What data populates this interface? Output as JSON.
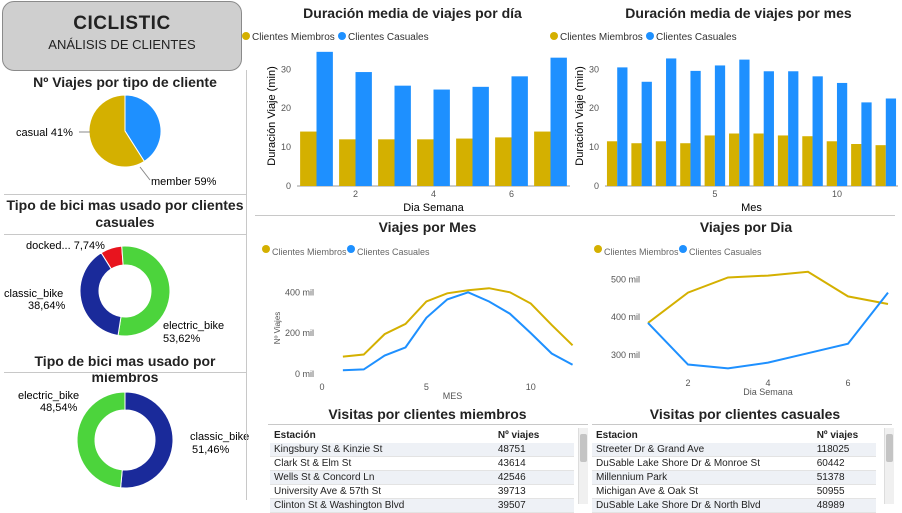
{
  "brand": {
    "title": "CICLISTIC",
    "subtitle": "ANÁLISIS DE CLIENTES"
  },
  "colors": {
    "members": "#d4b000",
    "casual": "#1e90ff",
    "electric": "#4cd43c",
    "classic": "#1a2a9a",
    "docked": "#e8141e"
  },
  "legend": {
    "members": "Clientes Miembros",
    "casual": "Clientes Casuales"
  },
  "chart_data": [
    {
      "id": "pie_tipo_cliente",
      "type": "pie",
      "title": "Nº Viajes por tipo de cliente",
      "slices": [
        {
          "label": "casual 41%",
          "value": 41,
          "color": "#1e90ff"
        },
        {
          "label": "member 59%",
          "value": 59,
          "color": "#d4b000"
        }
      ]
    },
    {
      "id": "donut_casuales",
      "type": "pie",
      "title": "Tipo de bici mas usado por clientes casuales",
      "slices": [
        {
          "label": "docked... 7,74%",
          "value": 7.74,
          "color": "#e8141e"
        },
        {
          "label": "electric_bike 53,62%",
          "name": "electric_bike",
          "pct": "53,62%",
          "value": 53.62,
          "color": "#4cd43c"
        },
        {
          "label": "classic_bike 38,64%",
          "name": "classic_bike",
          "pct": "38,64%",
          "value": 38.64,
          "color": "#1a2a9a"
        }
      ]
    },
    {
      "id": "donut_miembros",
      "type": "pie",
      "title": "Tipo de bici mas usado por miembros",
      "slices": [
        {
          "label": "classic_bike 51,46%",
          "name": "classic_bike",
          "pct": "51,46%",
          "value": 51.46,
          "color": "#1a2a9a"
        },
        {
          "label": "electric_bike 48,54%",
          "name": "electric_bike",
          "pct": "48,54%",
          "value": 48.54,
          "color": "#4cd43c"
        }
      ]
    },
    {
      "id": "bar_dia",
      "type": "bar",
      "title": "Duración media de viajes por día",
      "xlabel": "Dia Semana",
      "ylabel": "Duración Viaje (min)",
      "ylim": [
        0,
        36
      ],
      "yticks": [
        0,
        10,
        20,
        30
      ],
      "categories": [
        1,
        2,
        3,
        4,
        5,
        6,
        7
      ],
      "xticks": [
        2,
        4,
        6
      ],
      "series": [
        {
          "name": "Clientes Miembros",
          "values": [
            14,
            12,
            12,
            12,
            12.2,
            12.5,
            14
          ],
          "color": "#d4b000"
        },
        {
          "name": "Clientes Casuales",
          "values": [
            34.5,
            29.3,
            25.8,
            24.8,
            25.5,
            28.2,
            33
          ]
        }
      ]
    },
    {
      "id": "bar_mes",
      "type": "bar",
      "title": "Duración media de viajes por mes",
      "xlabel": "Mes",
      "ylabel": "Duración Viaje (min)",
      "ylim": [
        0,
        36
      ],
      "yticks": [
        0,
        10,
        20,
        30
      ],
      "categories": [
        1,
        2,
        3,
        4,
        5,
        6,
        7,
        8,
        9,
        10,
        11,
        12
      ],
      "xticks": [
        5,
        10
      ],
      "series": [
        {
          "name": "Clientes Miembros",
          "values": [
            11.5,
            11,
            11.5,
            11,
            13,
            13.5,
            13.5,
            13,
            12.8,
            11.5,
            10.8,
            10.5
          ]
        },
        {
          "name": "Clientes Casuales",
          "values": [
            30.5,
            26.8,
            32.8,
            29.6,
            31,
            32.5,
            29.5,
            29.5,
            28.2,
            26.5,
            21.5,
            22.5
          ]
        }
      ]
    },
    {
      "id": "line_mes",
      "type": "line",
      "title": "Viajes por Mes",
      "xlabel": "MES",
      "ylabel": "Nº Viajes",
      "xlim": [
        0,
        12.5
      ],
      "ylim": [
        -20000,
        470000
      ],
      "xticks": [
        0,
        5,
        10
      ],
      "yticks": [
        {
          "v": 0,
          "label": "0 mil"
        },
        {
          "v": 200000,
          "label": "200 mil"
        },
        {
          "v": 400000,
          "label": "400 mil"
        }
      ],
      "x": [
        1,
        2,
        3,
        4,
        5,
        6,
        7,
        8,
        9,
        10,
        11,
        12
      ],
      "series": [
        {
          "name": "Clientes Miembros",
          "values": [
            85000,
            95000,
            195000,
            245000,
            355000,
            395000,
            410000,
            420000,
            400000,
            345000,
            240000,
            140000
          ]
        },
        {
          "name": "Clientes Casuales",
          "values": [
            18000,
            22000,
            90000,
            130000,
            275000,
            365000,
            400000,
            355000,
            295000,
            200000,
            100000,
            45000
          ]
        }
      ]
    },
    {
      "id": "line_dia",
      "type": "line",
      "title": "Viajes por Dia",
      "xlabel": "Dia Semana",
      "ylabel": "",
      "xlim": [
        1,
        7
      ],
      "ylim": [
        250000,
        530000
      ],
      "xticks": [
        2,
        4,
        6
      ],
      "yticks": [
        {
          "v": 300000,
          "label": "300 mil"
        },
        {
          "v": 400000,
          "label": "400 mil"
        },
        {
          "v": 500000,
          "label": "500 mil"
        }
      ],
      "x": [
        1,
        2,
        3,
        4,
        5,
        6,
        7
      ],
      "series": [
        {
          "name": "Clientes Miembros",
          "values": [
            385000,
            465000,
            505000,
            510000,
            520000,
            455000,
            435000
          ]
        },
        {
          "name": "Clientes Casuales",
          "values": [
            385000,
            275000,
            265000,
            280000,
            305000,
            330000,
            465000
          ]
        }
      ]
    },
    {
      "id": "tabla_miembros",
      "type": "table",
      "title": "Visitas por clientes miembros",
      "columns": [
        "Estación",
        "Nº viajes"
      ],
      "rows": [
        [
          "Kingsbury St & Kinzie St",
          "48751"
        ],
        [
          "Clark St & Elm St",
          "43614"
        ],
        [
          "Wells St & Concord Ln",
          "42546"
        ],
        [
          "University Ave & 57th St",
          "39713"
        ],
        [
          "Clinton St & Washington Blvd",
          "39507"
        ]
      ]
    },
    {
      "id": "tabla_casuales",
      "type": "table",
      "title": "Visitas por clientes casuales",
      "columns": [
        "Estacion",
        "Nº viajes"
      ],
      "rows": [
        [
          "Streeter Dr & Grand Ave",
          "118025"
        ],
        [
          "DuSable Lake Shore Dr & Monroe St",
          "60442"
        ],
        [
          "Millennium Park",
          "51378"
        ],
        [
          "Michigan Ave & Oak St",
          "50955"
        ],
        [
          "DuSable Lake Shore Dr & North Blvd",
          "48989"
        ]
      ]
    }
  ]
}
